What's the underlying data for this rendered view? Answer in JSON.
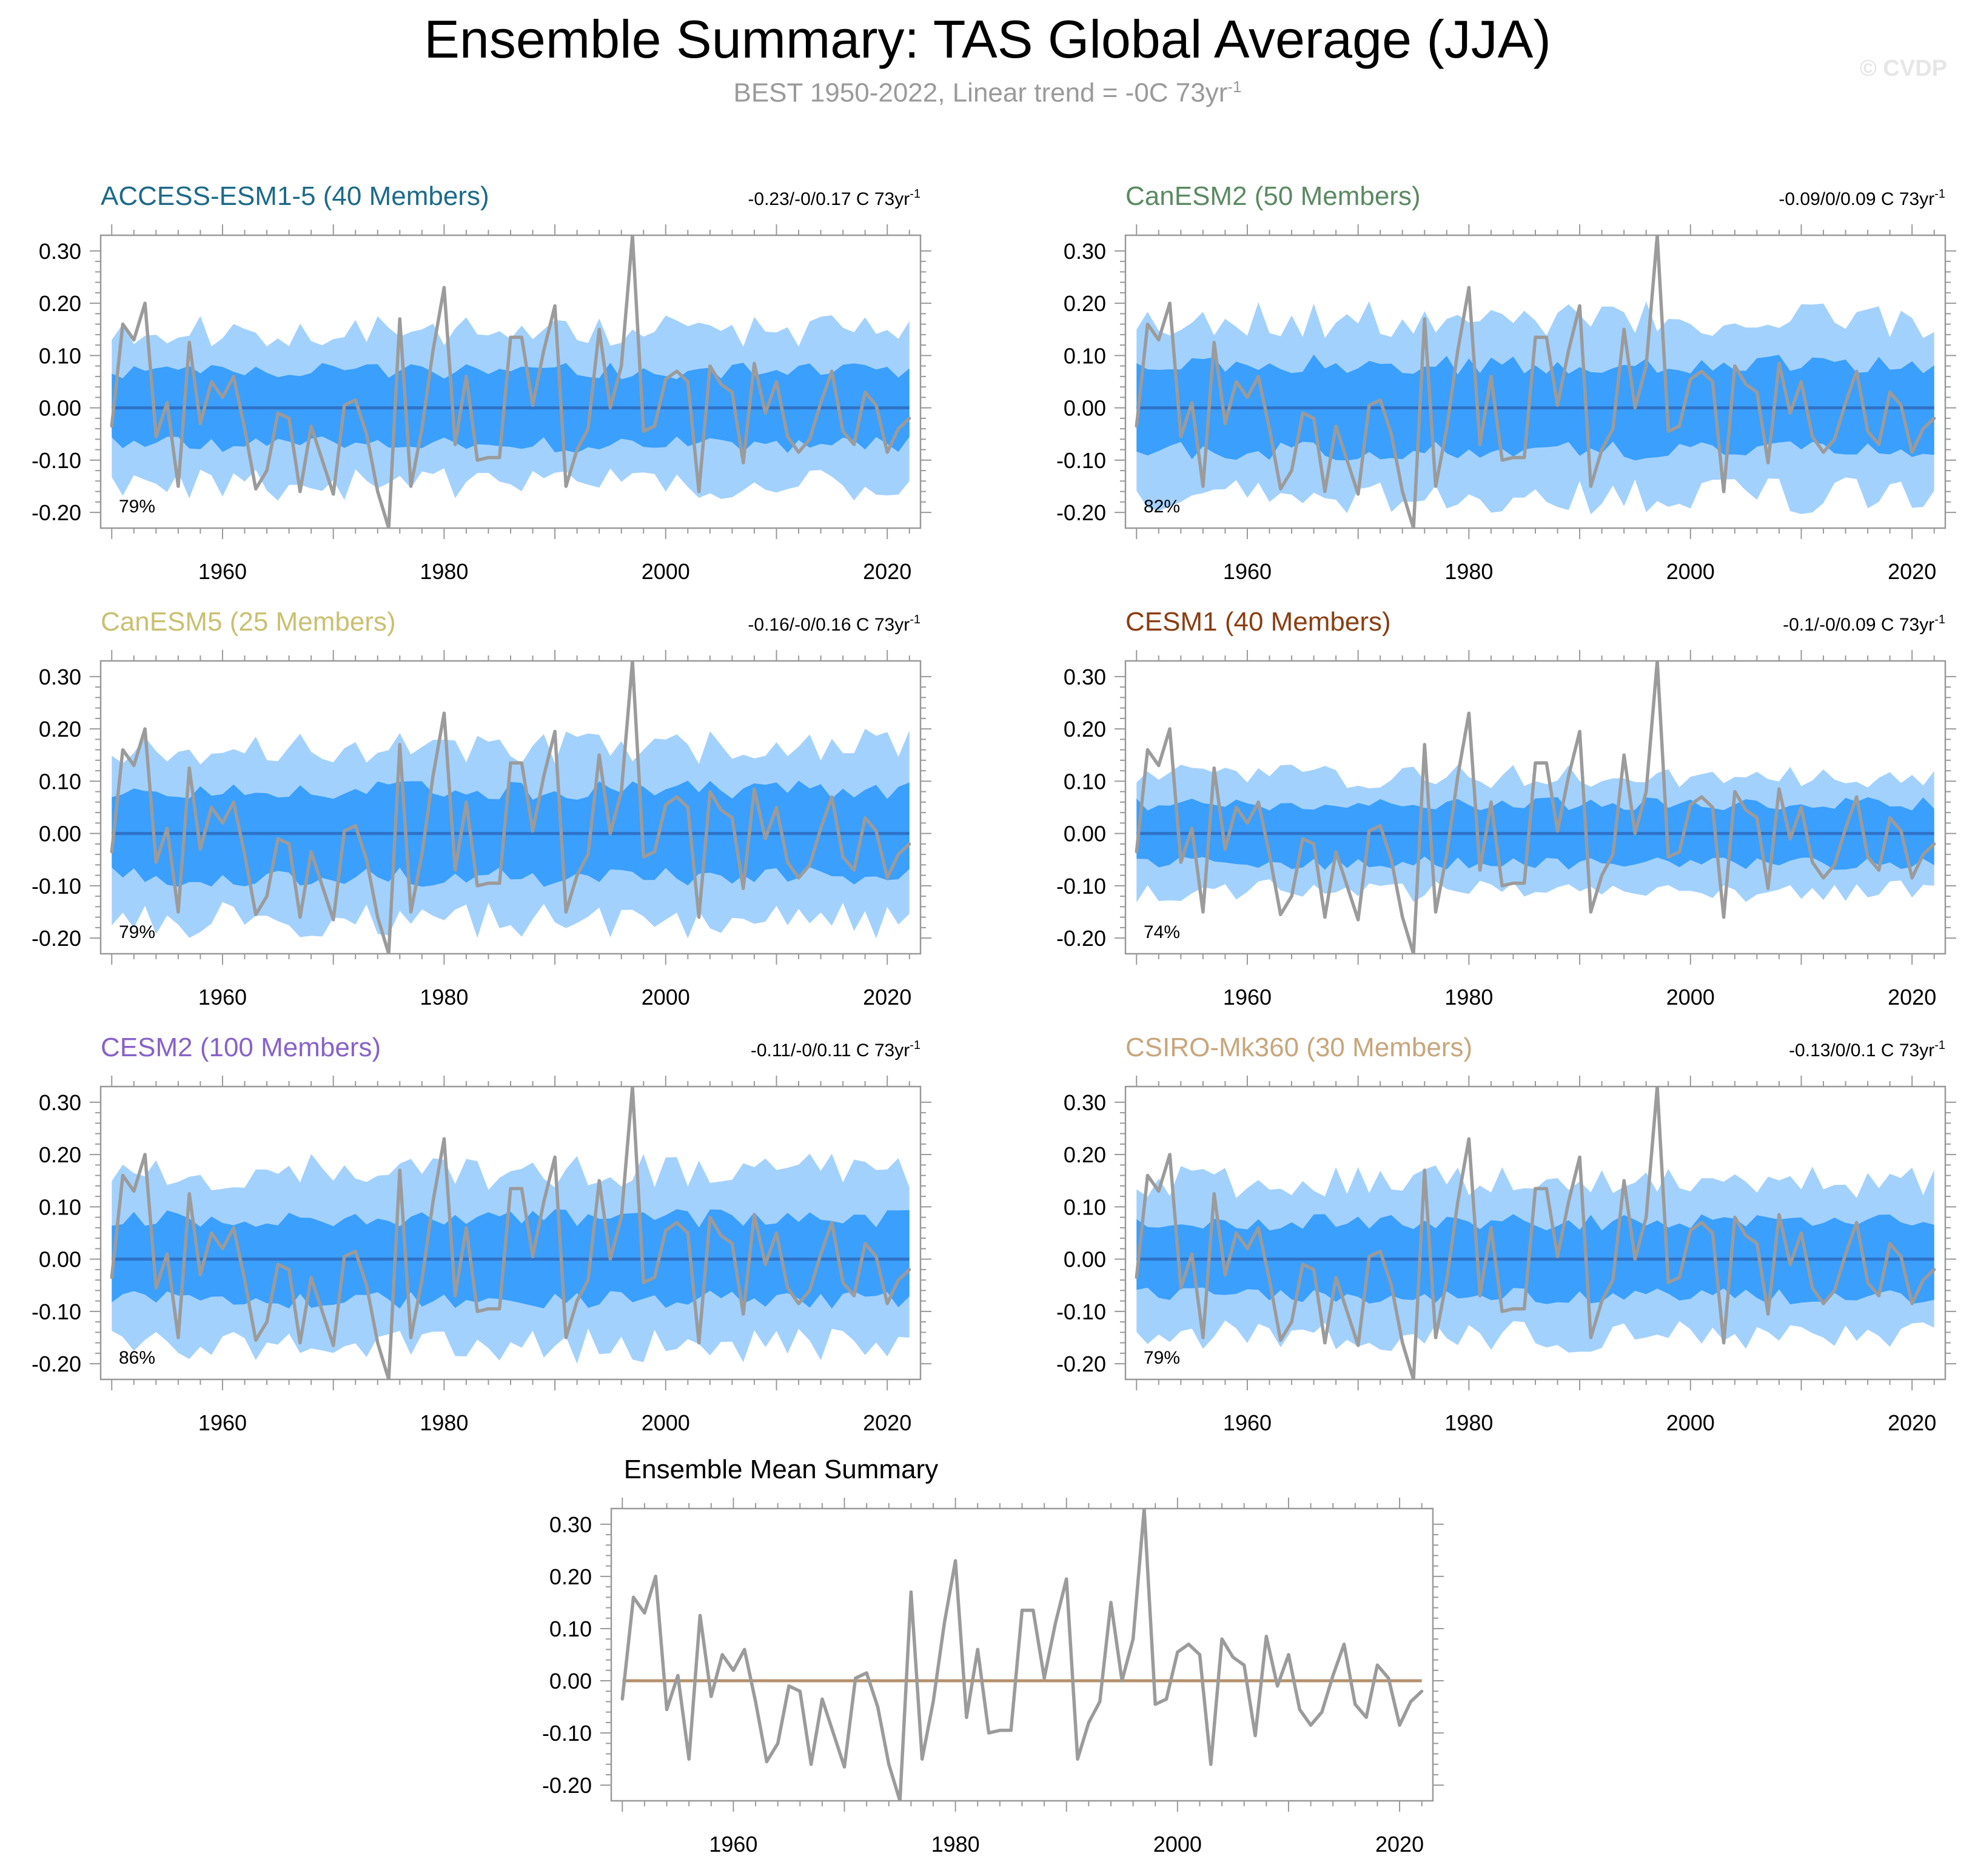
{
  "title": "Ensemble Summary: TAS Global Average (JJA)",
  "subtitle": "BEST 1950-2022, Linear trend = -0C 73yr",
  "subtitle_sup": "-1",
  "watermark": "© CVDP",
  "colors": {
    "outer_band": "#a3d1fd",
    "inner_band": "#3a9ffd",
    "mean_line": "#2e73c8",
    "obs_line": "#9b9b9b",
    "summary_zero_line": "#b5916c",
    "axis": "#999999",
    "text": "#000000"
  },
  "chart_data": [
    {
      "type": "area",
      "title": "ACCESS-ESM1-5 (40 Members)",
      "title_color": "#1c6a8a",
      "range_text": "-0.23/-0/0.17 C 73yr",
      "range_sup": "-1",
      "percent_text": "79%",
      "xlim": [
        1949,
        2023
      ],
      "ylim": [
        -0.23,
        0.33
      ],
      "xticks": [
        1960,
        1980,
        2000,
        2020
      ],
      "xtick_labels": [
        "1960",
        "1980",
        "2000",
        "2020"
      ],
      "yticks": [
        -0.2,
        -0.1,
        0.0,
        0.1,
        0.2,
        0.3
      ],
      "ytick_labels": [
        "-0.20",
        "-0.10",
        "0.00",
        "0.10",
        "0.20",
        "0.30"
      ],
      "band_outer": 0.148,
      "band_inner": 0.072,
      "band_seed": 11
    },
    {
      "type": "area",
      "title": "CanESM2 (50 Members)",
      "title_color": "#5a8a62",
      "range_text": "-0.09/0/0.09 C 73yr",
      "range_sup": "-1",
      "percent_text": "82%",
      "xlim": [
        1949,
        2023
      ],
      "ylim": [
        -0.23,
        0.33
      ],
      "xticks": [
        1960,
        1980,
        2000,
        2020
      ],
      "xtick_labels": [
        "1960",
        "1980",
        "2000",
        "2020"
      ],
      "yticks": [
        -0.2,
        -0.1,
        0.0,
        0.1,
        0.2,
        0.3
      ],
      "ytick_labels": [
        "-0.20",
        "-0.10",
        "0.00",
        "0.10",
        "0.20",
        "0.30"
      ],
      "band_outer": 0.17,
      "band_inner": 0.085,
      "band_seed": 23
    },
    {
      "type": "area",
      "title": "CanESM5 (25 Members)",
      "title_color": "#c9c071",
      "range_text": "-0.16/-0/0.16 C 73yr",
      "range_sup": "-1",
      "percent_text": "79%",
      "xlim": [
        1949,
        2023
      ],
      "ylim": [
        -0.23,
        0.33
      ],
      "xticks": [
        1960,
        1980,
        2000,
        2020
      ],
      "xtick_labels": [
        "1960",
        "1980",
        "2000",
        "2020"
      ],
      "yticks": [
        -0.2,
        -0.1,
        0.0,
        0.1,
        0.2,
        0.3
      ],
      "ytick_labels": [
        "-0.20",
        "-0.10",
        "0.00",
        "0.10",
        "0.20",
        "0.30"
      ],
      "band_outer": 0.168,
      "band_inner": 0.085,
      "band_seed": 37
    },
    {
      "type": "area",
      "title": "CESM1 (40 Members)",
      "title_color": "#8a3e12",
      "range_text": "-0.1/-0/0.09 C 73yr",
      "range_sup": "-1",
      "percent_text": "74%",
      "xlim": [
        1949,
        2023
      ],
      "ylim": [
        -0.23,
        0.33
      ],
      "xticks": [
        1960,
        1980,
        2000,
        2020
      ],
      "xtick_labels": [
        "1960",
        "1980",
        "2000",
        "2020"
      ],
      "yticks": [
        -0.2,
        -0.1,
        0.0,
        0.1,
        0.2,
        0.3
      ],
      "ytick_labels": [
        "-0.20",
        "-0.10",
        "0.00",
        "0.10",
        "0.20",
        "0.30"
      ],
      "band_outer": 0.11,
      "band_inner": 0.058,
      "band_seed": 41
    },
    {
      "type": "area",
      "title": "CESM2 (100 Members)",
      "title_color": "#8662c9",
      "range_text": "-0.11/-0/0.11 C 73yr",
      "range_sup": "-1",
      "percent_text": "86%",
      "xlim": [
        1949,
        2023
      ],
      "ylim": [
        -0.23,
        0.33
      ],
      "xticks": [
        1960,
        1980,
        2000,
        2020
      ],
      "xtick_labels": [
        "1960",
        "1980",
        "2000",
        "2020"
      ],
      "yticks": [
        -0.2,
        -0.1,
        0.0,
        0.1,
        0.2,
        0.3
      ],
      "ytick_labels": [
        "-0.20",
        "-0.10",
        "0.00",
        "0.10",
        "0.20",
        "0.30"
      ],
      "band_outer": 0.168,
      "band_inner": 0.08,
      "band_seed": 53
    },
    {
      "type": "area",
      "title": "CSIRO-Mk360 (30 Members)",
      "title_color": "#c8a57b",
      "range_text": "-0.13/0/0.1 C 73yr",
      "range_sup": "-1",
      "percent_text": "79%",
      "xlim": [
        1949,
        2023
      ],
      "ylim": [
        -0.23,
        0.33
      ],
      "xticks": [
        1960,
        1980,
        2000,
        2020
      ],
      "xtick_labels": [
        "1960",
        "1980",
        "2000",
        "2020"
      ],
      "yticks": [
        -0.2,
        -0.1,
        0.0,
        0.1,
        0.2,
        0.3
      ],
      "ytick_labels": [
        "-0.20",
        "-0.10",
        "0.00",
        "0.10",
        "0.20",
        "0.30"
      ],
      "band_outer": 0.15,
      "band_inner": 0.072,
      "band_seed": 67
    },
    {
      "type": "line",
      "title": "Ensemble Mean Summary",
      "title_color": "#000000",
      "xlim": [
        1949,
        2023
      ],
      "ylim": [
        -0.23,
        0.33
      ],
      "xticks": [
        1960,
        1980,
        2000,
        2020
      ],
      "xtick_labels": [
        "1960",
        "1980",
        "2000",
        "2020"
      ],
      "yticks": [
        -0.2,
        -0.1,
        0.0,
        0.1,
        0.2,
        0.3
      ],
      "ytick_labels": [
        "-0.20",
        "-0.10",
        "0.00",
        "0.10",
        "0.20",
        "0.30"
      ]
    }
  ],
  "observed": {
    "name": "BEST 1950-2022",
    "years": [
      1950,
      1951,
      1952,
      1953,
      1954,
      1955,
      1956,
      1957,
      1958,
      1959,
      1960,
      1961,
      1962,
      1963,
      1964,
      1965,
      1966,
      1967,
      1968,
      1969,
      1970,
      1971,
      1972,
      1973,
      1974,
      1975,
      1976,
      1977,
      1978,
      1979,
      1980,
      1981,
      1982,
      1983,
      1984,
      1985,
      1986,
      1987,
      1988,
      1989,
      1990,
      1991,
      1992,
      1993,
      1994,
      1995,
      1996,
      1997,
      1998,
      1999,
      2000,
      2001,
      2002,
      2003,
      2004,
      2005,
      2006,
      2007,
      2008,
      2009,
      2010,
      2011,
      2012,
      2013,
      2014,
      2015,
      2016,
      2017,
      2018,
      2019,
      2020,
      2021,
      2022
    ],
    "values": [
      -0.035,
      0.16,
      0.13,
      0.2,
      -0.055,
      0.01,
      -0.15,
      0.125,
      -0.03,
      0.05,
      0.02,
      0.06,
      -0.04,
      -0.155,
      -0.12,
      -0.01,
      -0.02,
      -0.16,
      -0.035,
      -0.1,
      -0.165,
      0.005,
      0.015,
      -0.05,
      -0.16,
      -0.23,
      0.17,
      -0.15,
      -0.04,
      0.11,
      0.23,
      -0.07,
      0.06,
      -0.1,
      -0.095,
      -0.095,
      0.135,
      0.135,
      0.005,
      0.11,
      0.195,
      -0.15,
      -0.08,
      -0.04,
      0.15,
      0.0,
      0.08,
      0.33,
      -0.045,
      -0.035,
      0.055,
      0.07,
      0.05,
      -0.16,
      0.08,
      0.045,
      0.03,
      -0.105,
      0.085,
      -0.01,
      0.05,
      -0.055,
      -0.085,
      -0.06,
      0.01,
      0.07,
      -0.045,
      -0.07,
      0.03,
      0.005,
      -0.085,
      -0.04,
      -0.02
    ]
  }
}
